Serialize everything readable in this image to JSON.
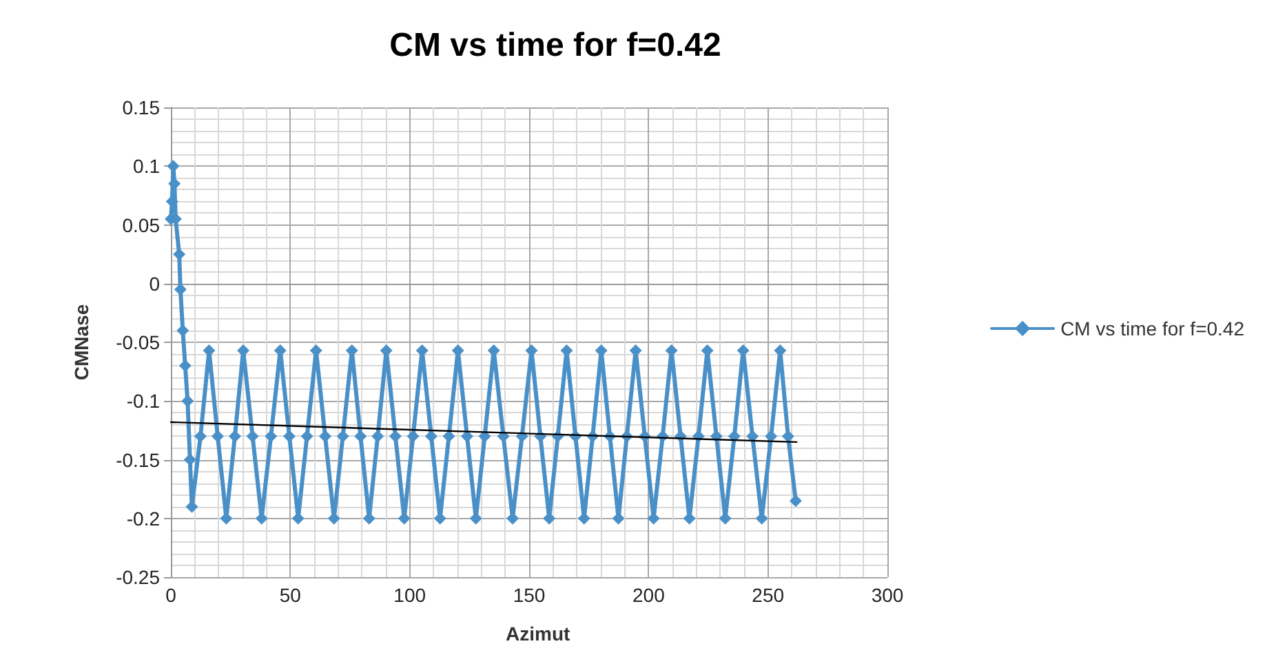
{
  "chart_data": {
    "type": "line",
    "title": "CM vs time for f=0.42",
    "xlabel": "Azimut",
    "ylabel": "CMNase",
    "xlim": [
      0,
      300
    ],
    "xticks": [
      0,
      50,
      100,
      150,
      200,
      250,
      300
    ],
    "ylim": [
      -0.25,
      0.15
    ],
    "yticks": [
      -0.25,
      -0.2,
      -0.15,
      -0.1,
      -0.05,
      0,
      0.05,
      0.1,
      0.15
    ],
    "grid": true,
    "legend": "right",
    "marker": "diamond",
    "line_style": "solid",
    "series": [
      {
        "name": "CM vs time for f=0.42",
        "color": "#4a90c8",
        "x": [
          0,
          0.5,
          1,
          1.5,
          2,
          3.5,
          4,
          5,
          6,
          7,
          8,
          8.8,
          12.4,
          16,
          19.6,
          23.2,
          26.8,
          30.3,
          34.2,
          38,
          41.9,
          45.8,
          49.6,
          53.3,
          57,
          60.8,
          64.6,
          68.3,
          72,
          75.8,
          79.4,
          83,
          86.6,
          90.2,
          94,
          97.7,
          101.4,
          105.2,
          109,
          112.7,
          116.4,
          120.2,
          124,
          127.7,
          131.4,
          135.2,
          139.2,
          143.1,
          147,
          151,
          154.7,
          158.4,
          162,
          165.7,
          169.4,
          173,
          176.6,
          180.2,
          183.8,
          187.4,
          190.9,
          194.6,
          198.4,
          202.1,
          205.9,
          209.6,
          213.4,
          217.1,
          220.9,
          224.6,
          228.4,
          232.1,
          235.9,
          239.6,
          243.5,
          247.4,
          251.3,
          255.1,
          258.4,
          261.6
        ],
        "values": [
          0.055,
          0.07,
          0.1,
          0.085,
          0.055,
          0.025,
          -0.005,
          -0.04,
          -0.07,
          -0.1,
          -0.15,
          -0.19,
          -0.13,
          -0.057,
          -0.13,
          -0.2,
          -0.13,
          -0.057,
          -0.13,
          -0.2,
          -0.13,
          -0.057,
          -0.13,
          -0.2,
          -0.13,
          -0.057,
          -0.13,
          -0.2,
          -0.13,
          -0.057,
          -0.13,
          -0.2,
          -0.13,
          -0.057,
          -0.13,
          -0.2,
          -0.13,
          -0.057,
          -0.13,
          -0.2,
          -0.13,
          -0.057,
          -0.13,
          -0.2,
          -0.13,
          -0.057,
          -0.13,
          -0.2,
          -0.13,
          -0.057,
          -0.13,
          -0.2,
          -0.13,
          -0.057,
          -0.13,
          -0.2,
          -0.13,
          -0.057,
          -0.13,
          -0.2,
          -0.13,
          -0.057,
          -0.13,
          -0.2,
          -0.13,
          -0.057,
          -0.13,
          -0.2,
          -0.13,
          -0.057,
          -0.13,
          -0.2,
          -0.13,
          -0.057,
          -0.13,
          -0.2,
          -0.13,
          -0.057,
          -0.13,
          -0.185
        ]
      },
      {
        "type": "line",
        "color": "#000000",
        "marker": "none",
        "x": [
          0,
          262
        ],
        "values": [
          -0.118,
          -0.135
        ]
      }
    ]
  }
}
